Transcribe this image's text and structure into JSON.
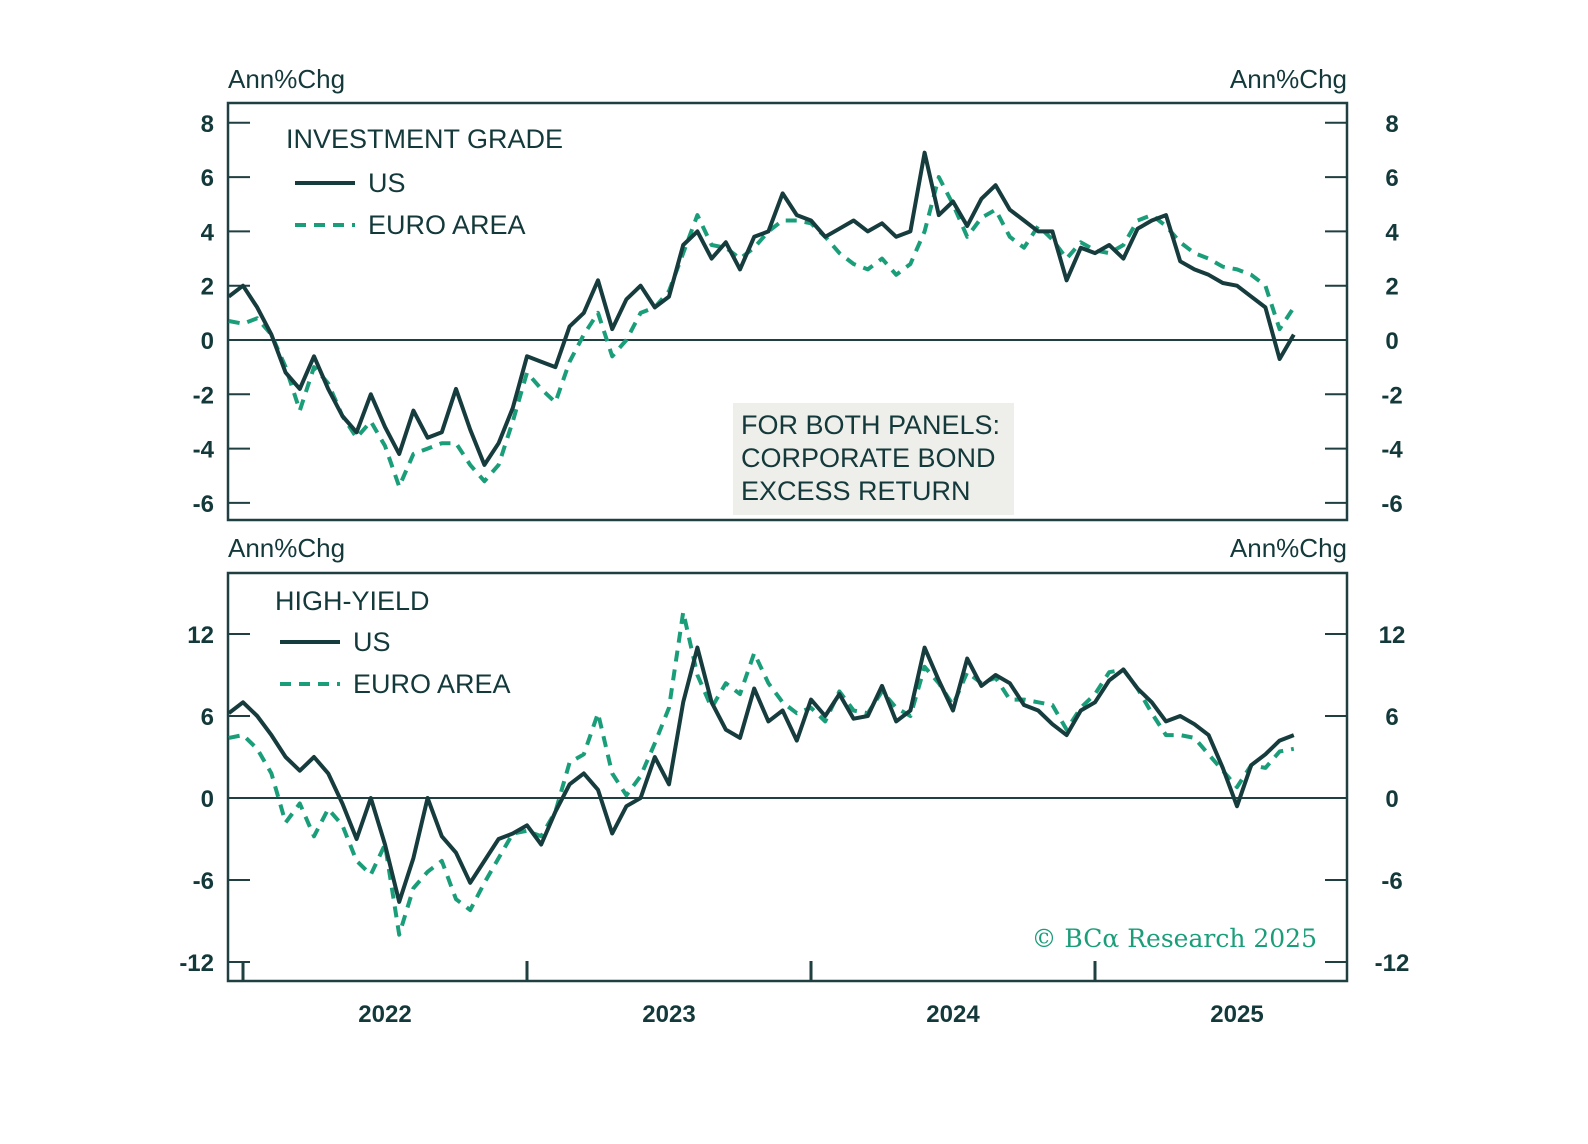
{
  "colors": {
    "us": "#163c3e",
    "euro": "#1a9e7a",
    "axis": "#1f3f41",
    "note_bg": "#eeeeea",
    "credit": "#1a9e7a"
  },
  "note": {
    "lines": [
      "FOR BOTH PANELS:",
      "CORPORATE BOND",
      "EXCESS RETURN"
    ]
  },
  "credit": "© BCα Research 2025",
  "chart_data": [
    {
      "type": "line",
      "title": "INVESTMENT GRADE",
      "ylabel_left": "Ann%Chg",
      "ylabel_right": "Ann%Chg",
      "ylim": [
        -6.8,
        8.7
      ],
      "yticks": [
        8,
        6,
        4,
        2,
        0,
        -2,
        -4,
        -6
      ],
      "ytick_labels": [
        "8",
        "6",
        "4",
        "2",
        "0",
        "-2",
        "-4",
        "-6"
      ],
      "zero_line": true,
      "legend": [
        "US",
        "EURO AREA"
      ],
      "legend_position": "top-left",
      "series": [
        {
          "name": "US",
          "style": "solid",
          "x": [
            2021.95,
            2022.0,
            2022.05,
            2022.1,
            2022.15,
            2022.2,
            2022.25,
            2022.3,
            2022.35,
            2022.4,
            2022.45,
            2022.5,
            2022.55,
            2022.6,
            2022.65,
            2022.7,
            2022.75,
            2022.8,
            2022.85,
            2022.9,
            2022.95,
            2023.0,
            2023.05,
            2023.1,
            2023.15,
            2023.2,
            2023.25,
            2023.3,
            2023.35,
            2023.4,
            2023.45,
            2023.5,
            2023.55,
            2023.6,
            2023.65,
            2023.7,
            2023.75,
            2023.8,
            2023.85,
            2023.9,
            2023.95,
            2024.0,
            2024.05,
            2024.1,
            2024.15,
            2024.2,
            2024.25,
            2024.3,
            2024.35,
            2024.4,
            2024.45,
            2024.5,
            2024.55,
            2024.6,
            2024.65,
            2024.7,
            2024.75,
            2024.8,
            2024.85,
            2024.9,
            2024.95,
            2025.0,
            2025.05,
            2025.1,
            2025.15,
            2025.2,
            2025.25,
            2025.3,
            2025.35,
            2025.4,
            2025.45,
            2025.5,
            2025.55,
            2025.6,
            2025.65,
            2025.7
          ],
          "values": [
            1.6,
            2.0,
            1.2,
            0.2,
            -1.2,
            -1.8,
            -0.6,
            -1.8,
            -2.8,
            -3.4,
            -2.0,
            -3.2,
            -4.2,
            -2.6,
            -3.6,
            -3.4,
            -1.8,
            -3.3,
            -4.6,
            -3.8,
            -2.5,
            -0.6,
            -0.8,
            -1.0,
            0.5,
            1.0,
            2.2,
            0.4,
            1.5,
            2.0,
            1.2,
            1.6,
            3.5,
            4.0,
            3.0,
            3.6,
            2.6,
            3.8,
            4.0,
            5.4,
            4.6,
            4.4,
            3.8,
            4.1,
            4.4,
            4.0,
            4.3,
            3.8,
            4.0,
            6.9,
            4.6,
            5.1,
            4.2,
            5.2,
            5.7,
            4.8,
            4.4,
            4.0,
            4.0,
            2.2,
            3.4,
            3.2,
            3.5,
            3.0,
            4.1,
            4.4,
            4.6,
            2.9,
            2.6,
            2.4,
            2.1,
            2.0,
            1.6,
            1.2,
            -0.7,
            0.2
          ]
        },
        {
          "name": "EURO AREA",
          "style": "dashed",
          "x": [
            2021.95,
            2022.0,
            2022.05,
            2022.1,
            2022.15,
            2022.2,
            2022.25,
            2022.3,
            2022.35,
            2022.4,
            2022.45,
            2022.5,
            2022.55,
            2022.6,
            2022.65,
            2022.7,
            2022.75,
            2022.8,
            2022.85,
            2022.9,
            2022.95,
            2023.0,
            2023.05,
            2023.1,
            2023.15,
            2023.2,
            2023.25,
            2023.3,
            2023.35,
            2023.4,
            2023.45,
            2023.5,
            2023.55,
            2023.6,
            2023.65,
            2023.7,
            2023.75,
            2023.8,
            2023.85,
            2023.9,
            2023.95,
            2024.0,
            2024.05,
            2024.1,
            2024.15,
            2024.2,
            2024.25,
            2024.3,
            2024.35,
            2024.4,
            2024.45,
            2024.5,
            2024.55,
            2024.6,
            2024.65,
            2024.7,
            2024.75,
            2024.8,
            2024.85,
            2024.9,
            2024.95,
            2025.0,
            2025.05,
            2025.1,
            2025.15,
            2025.2,
            2025.25,
            2025.3,
            2025.35,
            2025.4,
            2025.45,
            2025.5,
            2025.55,
            2025.6,
            2025.65,
            2025.7
          ],
          "values": [
            0.7,
            0.6,
            0.8,
            0.2,
            -1.0,
            -2.6,
            -1.0,
            -1.6,
            -2.8,
            -3.6,
            -3.0,
            -3.9,
            -5.4,
            -4.2,
            -4.0,
            -3.8,
            -3.8,
            -4.6,
            -5.2,
            -4.6,
            -3.0,
            -1.2,
            -1.8,
            -2.3,
            -0.8,
            0.2,
            1.0,
            -0.6,
            0.0,
            1.0,
            1.2,
            1.8,
            3.2,
            4.6,
            3.5,
            3.4,
            3.0,
            3.4,
            4.0,
            4.4,
            4.4,
            4.3,
            3.8,
            3.2,
            2.8,
            2.6,
            3.0,
            2.4,
            2.8,
            4.0,
            6.0,
            5.0,
            3.8,
            4.5,
            4.8,
            3.8,
            3.4,
            4.2,
            3.7,
            3.0,
            3.6,
            3.3,
            3.2,
            3.5,
            4.4,
            4.6,
            4.2,
            3.6,
            3.2,
            3.0,
            2.7,
            2.6,
            2.4,
            2.0,
            0.4,
            1.2
          ]
        }
      ]
    },
    {
      "type": "line",
      "title": "HIGH-YIELD",
      "ylabel_left": "Ann%Chg",
      "ylabel_right": "Ann%Chg",
      "ylim": [
        -13.2,
        16.5
      ],
      "yticks": [
        12,
        6,
        0,
        -6,
        -12
      ],
      "ytick_labels": [
        "12",
        "6",
        "0",
        "-6",
        "-12"
      ],
      "zero_line": true,
      "legend": [
        "US",
        "EURO AREA"
      ],
      "legend_position": "top-left",
      "xticks": [
        2022,
        2023,
        2024,
        2025
      ],
      "xtick_labels": [
        "2022",
        "2023",
        "2024",
        "2025"
      ],
      "xlim": [
        2021.95,
        2025.9
      ],
      "series": [
        {
          "name": "US",
          "style": "solid",
          "x": [
            2021.95,
            2022.0,
            2022.05,
            2022.1,
            2022.15,
            2022.2,
            2022.25,
            2022.3,
            2022.35,
            2022.4,
            2022.45,
            2022.5,
            2022.55,
            2022.6,
            2022.65,
            2022.7,
            2022.75,
            2022.8,
            2022.85,
            2022.9,
            2022.95,
            2023.0,
            2023.05,
            2023.1,
            2023.15,
            2023.2,
            2023.25,
            2023.3,
            2023.35,
            2023.4,
            2023.45,
            2023.5,
            2023.55,
            2023.6,
            2023.65,
            2023.7,
            2023.75,
            2023.8,
            2023.85,
            2023.9,
            2023.95,
            2024.0,
            2024.05,
            2024.1,
            2024.15,
            2024.2,
            2024.25,
            2024.3,
            2024.35,
            2024.4,
            2024.45,
            2024.5,
            2024.55,
            2024.6,
            2024.65,
            2024.7,
            2024.75,
            2024.8,
            2024.85,
            2024.9,
            2024.95,
            2025.0,
            2025.05,
            2025.1,
            2025.15,
            2025.2,
            2025.25,
            2025.3,
            2025.35,
            2025.4,
            2025.45,
            2025.5,
            2025.55,
            2025.6,
            2025.65,
            2025.7
          ],
          "values": [
            6.2,
            7.0,
            6.0,
            4.6,
            3.0,
            2.0,
            3.0,
            1.8,
            -0.4,
            -3.0,
            0.0,
            -3.4,
            -7.6,
            -4.4,
            0.0,
            -2.8,
            -4.0,
            -6.2,
            -4.6,
            -3.0,
            -2.6,
            -2.0,
            -3.4,
            -1.0,
            1.0,
            1.8,
            0.6,
            -2.6,
            -0.6,
            0.0,
            3.0,
            1.0,
            7.0,
            11.0,
            7.0,
            5.0,
            4.4,
            8.0,
            5.6,
            6.4,
            4.2,
            7.2,
            6.0,
            7.6,
            5.8,
            6.0,
            8.2,
            5.6,
            6.4,
            11.0,
            8.6,
            6.4,
            10.2,
            8.2,
            9.0,
            8.4,
            6.8,
            6.4,
            5.4,
            4.6,
            6.4,
            7.0,
            8.6,
            9.4,
            8.0,
            7.0,
            5.6,
            6.0,
            5.4,
            4.6,
            2.2,
            -0.6,
            2.4,
            3.2,
            4.2,
            4.6
          ]
        },
        {
          "name": "EURO AREA",
          "style": "dashed",
          "x": [
            2021.95,
            2022.0,
            2022.05,
            2022.1,
            2022.15,
            2022.2,
            2022.25,
            2022.3,
            2022.35,
            2022.4,
            2022.45,
            2022.5,
            2022.55,
            2022.6,
            2022.65,
            2022.7,
            2022.75,
            2022.8,
            2022.85,
            2022.9,
            2022.95,
            2023.0,
            2023.05,
            2023.1,
            2023.15,
            2023.2,
            2023.25,
            2023.3,
            2023.35,
            2023.4,
            2023.45,
            2023.5,
            2023.55,
            2023.6,
            2023.65,
            2023.7,
            2023.75,
            2023.8,
            2023.85,
            2023.9,
            2023.95,
            2024.0,
            2024.05,
            2024.1,
            2024.15,
            2024.2,
            2024.25,
            2024.3,
            2024.35,
            2024.4,
            2024.45,
            2024.5,
            2024.55,
            2024.6,
            2024.65,
            2024.7,
            2024.75,
            2024.8,
            2024.85,
            2024.9,
            2024.95,
            2025.0,
            2025.05,
            2025.1,
            2025.15,
            2025.2,
            2025.25,
            2025.3,
            2025.35,
            2025.4,
            2025.45,
            2025.5,
            2025.55,
            2025.6,
            2025.65,
            2025.7
          ],
          "values": [
            4.4,
            4.6,
            3.6,
            1.8,
            -1.8,
            -0.4,
            -2.8,
            -0.8,
            -2.0,
            -4.6,
            -5.6,
            -3.4,
            -10.0,
            -6.6,
            -5.4,
            -4.6,
            -7.4,
            -8.2,
            -6.2,
            -4.4,
            -2.6,
            -2.4,
            -2.8,
            -1.0,
            2.6,
            3.2,
            6.2,
            1.8,
            0.2,
            1.6,
            4.0,
            6.6,
            13.6,
            9.0,
            6.6,
            8.4,
            7.6,
            10.6,
            8.4,
            7.0,
            6.2,
            6.6,
            5.6,
            7.8,
            6.4,
            6.2,
            7.8,
            6.6,
            6.0,
            9.6,
            8.4,
            6.8,
            9.2,
            8.4,
            8.8,
            7.2,
            7.2,
            7.0,
            6.8,
            5.0,
            6.6,
            7.6,
            9.2,
            9.4,
            8.0,
            6.2,
            4.6,
            4.6,
            4.4,
            3.2,
            2.0,
            0.8,
            2.4,
            2.2,
            3.4,
            3.6
          ]
        }
      ]
    }
  ]
}
